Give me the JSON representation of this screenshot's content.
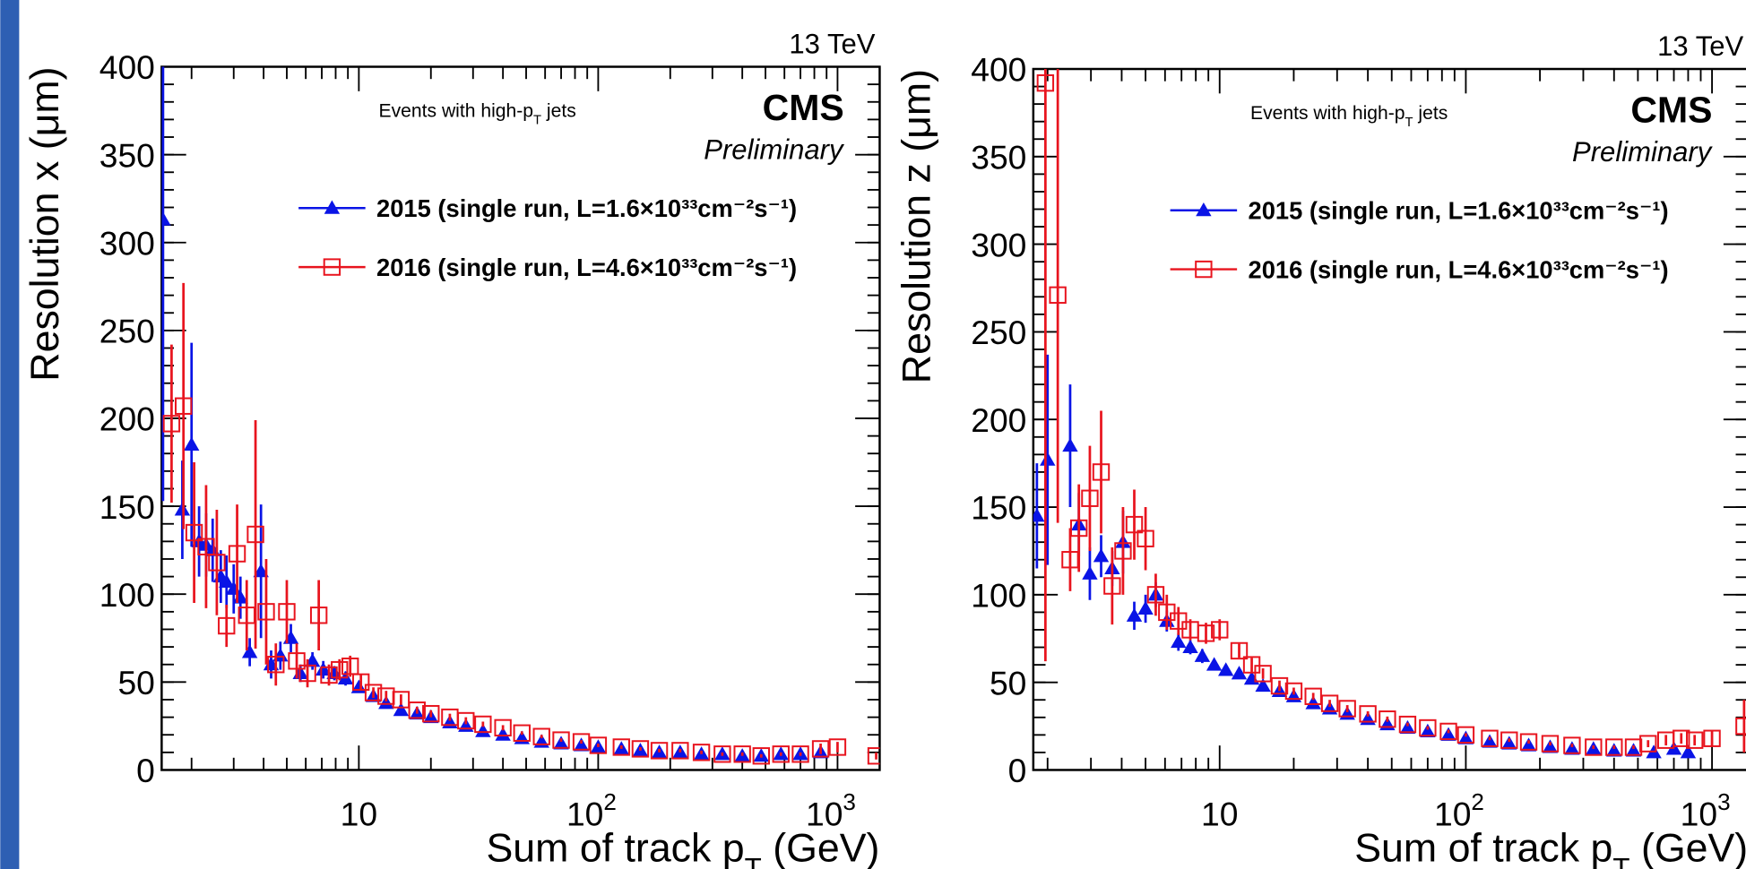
{
  "chart_data": [
    {
      "type": "scatter",
      "energy_label": "13 TeV",
      "experiment": "CMS",
      "status": "Preliminary",
      "annotation": {
        "text": "Events with high-p",
        "sub": "T",
        "after": " jets"
      },
      "x_label": {
        "text": "Sum of track p",
        "sub": "T",
        "after": " (GeV)"
      },
      "y_label": "Resolution x (μm)",
      "x_log": true,
      "xlim": [
        1.5,
        1500
      ],
      "xticks": [
        10,
        {
          "value": 100,
          "label": "10",
          "exponent": "2"
        },
        {
          "value": 1000,
          "label": "10",
          "exponent": "3"
        }
      ],
      "ylim": [
        0,
        400
      ],
      "yticks": [
        0,
        50,
        100,
        150,
        200,
        250,
        300,
        350,
        400
      ],
      "series": [
        {
          "name": "2015 (single run, L=1.6×10³³cm⁻²s⁻¹)",
          "color": "#0a14e6",
          "marker": "triangle",
          "x": [
            1.52,
            1.83,
            2.0,
            2.15,
            2.3,
            2.45,
            2.65,
            2.8,
            3.0,
            3.2,
            3.5,
            3.9,
            4.3,
            4.7,
            5.2,
            5.7,
            6.4,
            7.1,
            7.9,
            8.8,
            10,
            11.5,
            13,
            15,
            17.5,
            20,
            24,
            28,
            33,
            40,
            48,
            58,
            70,
            85,
            100,
            125,
            150,
            180,
            220,
            270,
            330,
            400,
            480,
            580,
            700,
            850
          ],
          "values": [
            313,
            148,
            185,
            130,
            128,
            125,
            110,
            107,
            103,
            98,
            67,
            113,
            60,
            65,
            75,
            55,
            62,
            57,
            55,
            52,
            47,
            42,
            38,
            34,
            32,
            30,
            27,
            25,
            22,
            20,
            18,
            16,
            15,
            14,
            13,
            12,
            11,
            10,
            10,
            9,
            9,
            8,
            8,
            9,
            9,
            10
          ],
          "errors": [
            160,
            28,
            58,
            20,
            18,
            18,
            15,
            15,
            14,
            12,
            8,
            38,
            8,
            8,
            8,
            5,
            5,
            5,
            4,
            4,
            3,
            3,
            2,
            2,
            2,
            2,
            1.5,
            1.5,
            1,
            1,
            1,
            1,
            1,
            1,
            1,
            1,
            1,
            1,
            1,
            1,
            1,
            1,
            1,
            1,
            1,
            2
          ]
        },
        {
          "name": "2016 (single run, L=4.6×10³³cm⁻²s⁻¹)",
          "color": "#e8141e",
          "marker": "open-square",
          "x": [
            1.65,
            1.85,
            2.05,
            2.3,
            2.55,
            2.8,
            3.1,
            3.4,
            3.7,
            4.1,
            4.5,
            5.0,
            5.5,
            6.1,
            6.8,
            7.5,
            8.3,
            9.2,
            10.2,
            11.5,
            13,
            15,
            17.5,
            20,
            24,
            28,
            33,
            40,
            48,
            58,
            70,
            85,
            100,
            125,
            150,
            180,
            220,
            270,
            330,
            400,
            480,
            580,
            700,
            850,
            1000,
            1450
          ],
          "values": [
            197,
            207,
            135,
            127,
            118,
            82,
            123,
            88,
            134,
            90,
            60,
            90,
            62,
            55,
            88,
            54,
            57,
            59,
            50,
            44,
            42,
            40,
            34,
            32,
            30,
            28,
            26,
            24,
            21,
            19,
            17,
            16,
            14,
            13,
            12,
            11,
            11,
            10,
            9,
            9,
            8,
            9,
            9,
            12,
            13,
            8
          ],
          "errors": [
            45,
            70,
            40,
            35,
            30,
            12,
            28,
            20,
            65,
            30,
            12,
            18,
            10,
            8,
            20,
            6,
            6,
            6,
            4,
            3,
            3,
            3,
            2,
            2,
            2,
            2,
            1.5,
            1.5,
            1,
            1,
            1,
            1,
            1,
            1,
            1,
            1,
            1,
            1,
            1,
            1,
            1,
            1,
            1,
            3,
            3,
            2
          ]
        }
      ]
    },
    {
      "type": "scatter",
      "energy_label": "13 TeV",
      "experiment": "CMS",
      "status": "Preliminary",
      "annotation": {
        "text": "Events with high-p",
        "sub": "T",
        "after": " jets"
      },
      "x_label": {
        "text": "Sum of track p",
        "sub": "T",
        "after": " (GeV)"
      },
      "y_label": "Resolution z (μm)",
      "x_log": true,
      "xlim": [
        1.75,
        1400
      ],
      "xticks": [
        10,
        {
          "value": 100,
          "label": "10",
          "exponent": "2"
        },
        {
          "value": 1000,
          "label": "10",
          "exponent": "3"
        }
      ],
      "ylim": [
        0,
        400
      ],
      "yticks": [
        0,
        50,
        100,
        150,
        200,
        250,
        300,
        350,
        400
      ],
      "series": [
        {
          "name": "2015 (single run, L=1.6×10³³cm⁻²s⁻¹)",
          "color": "#0a14e6",
          "marker": "triangle",
          "x": [
            1.81,
            2.0,
            2.47,
            2.68,
            2.97,
            3.3,
            3.66,
            4.05,
            4.5,
            5.0,
            5.5,
            6.1,
            6.8,
            7.6,
            8.5,
            9.5,
            10.6,
            12,
            13.5,
            15,
            17.5,
            20,
            24,
            28,
            33,
            40,
            48,
            58,
            70,
            85,
            100,
            125,
            150,
            180,
            220,
            270,
            330,
            400,
            480,
            580,
            700,
            800
          ],
          "values": [
            145,
            177,
            185,
            140,
            112,
            122,
            115,
            130,
            88,
            92,
            100,
            85,
            73,
            70,
            65,
            60,
            57,
            55,
            52,
            48,
            45,
            42,
            38,
            35,
            32,
            29,
            26,
            24,
            22,
            20,
            18,
            16,
            15,
            14,
            13,
            12,
            12,
            11,
            11,
            10,
            12,
            10
          ],
          "errors": [
            30,
            60,
            35,
            18,
            15,
            12,
            10,
            18,
            8,
            8,
            7,
            6,
            5,
            4,
            4,
            3,
            3,
            3,
            2,
            2,
            2,
            2,
            2,
            1.5,
            1.5,
            1,
            1,
            1,
            1,
            1,
            1,
            1,
            1,
            1,
            1,
            1,
            1,
            1,
            1,
            1,
            2,
            1
          ]
        },
        {
          "name": "2016 (single run, L=4.6×10³³cm⁻²s⁻¹)",
          "color": "#e8141e",
          "marker": "open-square",
          "x": [
            1.96,
            2.2,
            2.47,
            2.68,
            2.97,
            3.3,
            3.66,
            4.05,
            4.5,
            5.0,
            5.5,
            6.1,
            6.8,
            7.6,
            8.8,
            10,
            12,
            13.5,
            15,
            17.5,
            20,
            24,
            28,
            33,
            40,
            48,
            58,
            70,
            85,
            100,
            125,
            150,
            180,
            220,
            270,
            330,
            400,
            480,
            550,
            650,
            750,
            850,
            1000,
            1350
          ],
          "values": [
            392,
            271,
            120,
            138,
            155,
            170,
            105,
            125,
            140,
            132,
            100,
            90,
            85,
            80,
            78,
            80,
            68,
            60,
            55,
            48,
            45,
            42,
            38,
            35,
            32,
            29,
            26,
            24,
            22,
            20,
            18,
            17,
            16,
            15,
            14,
            13,
            13,
            13,
            15,
            17,
            18,
            17,
            18,
            25
          ],
          "errors": [
            330,
            130,
            18,
            25,
            30,
            35,
            22,
            25,
            20,
            18,
            12,
            10,
            8,
            6,
            6,
            6,
            4,
            4,
            3,
            3,
            2,
            2,
            2,
            2,
            1.5,
            1.5,
            1,
            1,
            1,
            1,
            1,
            1,
            1,
            1,
            1,
            1,
            1,
            1,
            2,
            3,
            3,
            3,
            4,
            15
          ]
        }
      ]
    }
  ]
}
